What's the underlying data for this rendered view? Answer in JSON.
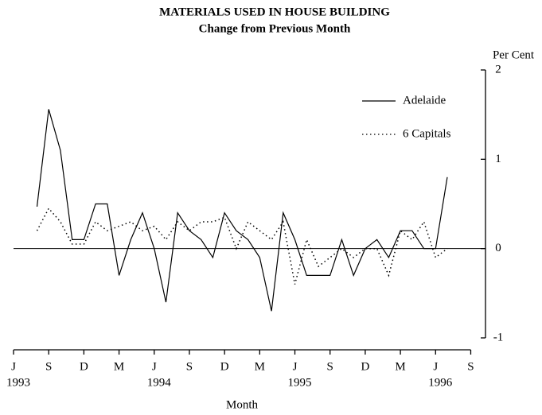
{
  "chart_data": {
    "type": "line",
    "title": "MATERIALS USED IN HOUSE BUILDING",
    "subtitle": "Change from Previous Month",
    "x_label": "Month",
    "y_label": "Per Cent",
    "categories": [
      "J",
      null,
      null,
      "S",
      null,
      null,
      "D",
      null,
      null,
      "M",
      null,
      null,
      "J",
      null,
      null,
      "S",
      null,
      null,
      "D",
      null,
      null,
      "M",
      null,
      null,
      "J",
      null,
      null,
      "S",
      null,
      null,
      "D",
      null,
      null,
      "M",
      null,
      null,
      "J",
      null,
      null,
      "S"
    ],
    "years": [
      "1993",
      null,
      null,
      null,
      null,
      null,
      null,
      null,
      null,
      null,
      null,
      null,
      "1994",
      null,
      null,
      null,
      null,
      null,
      null,
      null,
      null,
      null,
      null,
      null,
      "1995",
      null,
      null,
      null,
      null,
      null,
      null,
      null,
      null,
      null,
      null,
      null,
      "1996",
      null,
      null,
      null
    ],
    "ylim": [
      -1,
      2
    ],
    "yticks": [
      -1,
      0,
      1,
      2
    ],
    "series": [
      {
        "name": "Adelaide",
        "color": "#000000",
        "style": "solid",
        "values": [
          null,
          null,
          0.47,
          1.56,
          1.1,
          0.1,
          0.1,
          0.5,
          0.5,
          -0.3,
          0.1,
          0.4,
          0.0,
          -0.6,
          0.4,
          0.2,
          0.1,
          -0.1,
          0.4,
          0.2,
          0.1,
          -0.1,
          -0.7,
          0.4,
          0.1,
          -0.3,
          -0.3,
          -0.3,
          0.1,
          -0.3,
          0.0,
          0.1,
          -0.1,
          0.2,
          0.2,
          0.0,
          0.0,
          0.8,
          null,
          null
        ]
      },
      {
        "name": "6 Capitals",
        "color": "#000000",
        "style": "dotted",
        "values": [
          null,
          null,
          0.2,
          0.45,
          0.3,
          0.05,
          0.05,
          0.3,
          0.2,
          0.25,
          0.3,
          0.2,
          0.25,
          0.1,
          0.3,
          0.2,
          0.3,
          0.3,
          0.35,
          0.0,
          0.3,
          0.2,
          0.1,
          0.3,
          -0.4,
          0.1,
          -0.2,
          -0.1,
          0.0,
          -0.1,
          0.0,
          0.0,
          -0.3,
          0.2,
          0.1,
          0.3,
          -0.1,
          0.0,
          null,
          null
        ]
      }
    ]
  }
}
